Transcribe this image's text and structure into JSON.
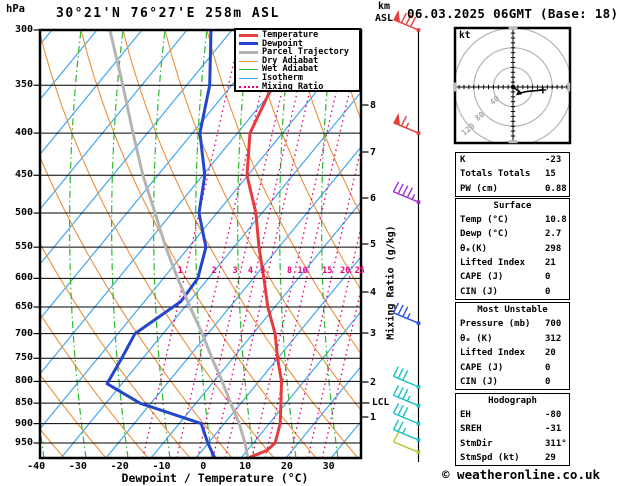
{
  "header": {
    "title": "30°21'N 76°27'E 258m ASL",
    "date": "06.03.2025 06GMT (Base: 18)"
  },
  "axes": {
    "pressure_unit": "hPa",
    "altitude_unit_line1": "km",
    "altitude_unit_line2": "ASL",
    "pressure_ticks": [
      300,
      350,
      400,
      450,
      500,
      550,
      600,
      650,
      700,
      750,
      800,
      850,
      900,
      950
    ],
    "temp_ticks": [
      -40,
      -30,
      -20,
      -10,
      0,
      10,
      20,
      30
    ],
    "xlabel": "Dewpoint / Temperature (°C)",
    "km_ticks": [
      8,
      7,
      6,
      5,
      4,
      3,
      2,
      1
    ],
    "mixing_axis_label": "Mixing Ratio (g/kg)",
    "mixing_ratio_labels": [
      1,
      2,
      3,
      4,
      5,
      8,
      10,
      15,
      20,
      25
    ],
    "lcl_label": "LCL",
    "lcl_pressure_hpa": 850
  },
  "legend": {
    "items": [
      {
        "label": "Temperature",
        "color": "#e63c3c",
        "style": "thick"
      },
      {
        "label": "Dewpoint",
        "color": "#2446cc",
        "style": "thick"
      },
      {
        "label": "Parcel Trajectory",
        "color": "#b4b4b4",
        "style": "thick"
      },
      {
        "label": "Dry Adiabat",
        "color": "#e8913d",
        "style": "thin"
      },
      {
        "label": "Wet Adiabat",
        "color": "#2db82d",
        "style": "thin"
      },
      {
        "label": "Isotherm",
        "color": "#41a6f0",
        "style": "thin"
      },
      {
        "label": "Mixing Ratio",
        "color": "#e6007e",
        "style": "dotted"
      }
    ]
  },
  "chart_data": {
    "type": "line",
    "title": "Skew-T log-P sounding",
    "x_axis": {
      "label": "Dewpoint / Temperature (°C)",
      "ticks": [
        -40,
        -30,
        -20,
        -10,
        0,
        10,
        20,
        30
      ]
    },
    "y_axis": {
      "label": "hPa",
      "scale": "log",
      "ticks": [
        300,
        350,
        400,
        450,
        500,
        550,
        600,
        650,
        700,
        750,
        800,
        850,
        900,
        950
      ],
      "range": [
        300,
        990
      ]
    },
    "series": [
      {
        "name": "Temperature",
        "color": "#e63c3c",
        "points_p_t": [
          [
            300,
            -40
          ],
          [
            350,
            -37.5
          ],
          [
            400,
            -36
          ],
          [
            450,
            -30.6
          ],
          [
            500,
            -23
          ],
          [
            550,
            -17.3
          ],
          [
            600,
            -11.6
          ],
          [
            650,
            -6.5
          ],
          [
            700,
            -0.9
          ],
          [
            750,
            3.3
          ],
          [
            800,
            7.6
          ],
          [
            850,
            10.6
          ],
          [
            900,
            13.4
          ],
          [
            950,
            15
          ],
          [
            970,
            14.1
          ],
          [
            990,
            10.8
          ]
        ]
      },
      {
        "name": "Dewpoint",
        "color": "#2446cc",
        "points_p_t": [
          [
            300,
            -60.3
          ],
          [
            350,
            -52.6
          ],
          [
            400,
            -48
          ],
          [
            450,
            -40.7
          ],
          [
            500,
            -36.6
          ],
          [
            550,
            -30
          ],
          [
            600,
            -27.4
          ],
          [
            640,
            -28.1
          ],
          [
            700,
            -34.4
          ],
          [
            750,
            -34
          ],
          [
            805,
            -33.8
          ],
          [
            850,
            -23.1
          ],
          [
            900,
            -5.5
          ],
          [
            950,
            -1.1
          ],
          [
            990,
            2.7
          ]
        ]
      },
      {
        "name": "Parcel Trajectory",
        "color": "#b4b4b4",
        "points_p_t": [
          [
            300,
            -84.5
          ],
          [
            350,
            -73.4
          ],
          [
            400,
            -64
          ],
          [
            450,
            -55.5
          ],
          [
            500,
            -47.1
          ],
          [
            550,
            -39.6
          ],
          [
            600,
            -32.2
          ],
          [
            650,
            -25.1
          ],
          [
            700,
            -18.3
          ],
          [
            750,
            -12.4
          ],
          [
            800,
            -6.6
          ],
          [
            850,
            -1.4
          ],
          [
            900,
            3.6
          ],
          [
            950,
            7.8
          ],
          [
            990,
            10.6
          ]
        ]
      }
    ],
    "mixing_ratio_lines_g_kg": [
      1,
      2,
      3,
      4,
      5,
      8,
      10,
      15,
      20,
      25
    ]
  },
  "wind_barbs": [
    {
      "pressure_hpa": 300,
      "speed_kt": 80,
      "color": "#e63c3c"
    },
    {
      "pressure_hpa": 400,
      "speed_kt": 65,
      "color": "#e63c3c"
    },
    {
      "pressure_hpa": 485,
      "speed_kt": 45,
      "color": "#9a30c8"
    },
    {
      "pressure_hpa": 680,
      "speed_kt": 35,
      "color": "#2a50e8"
    },
    {
      "pressure_hpa": 812,
      "speed_kt": 30,
      "color": "#18c0c0"
    },
    {
      "pressure_hpa": 856,
      "speed_kt": 35,
      "color": "#18c0c0"
    },
    {
      "pressure_hpa": 900,
      "speed_kt": 30,
      "color": "#18c0c0"
    },
    {
      "pressure_hpa": 942,
      "speed_kt": 25,
      "color": "#18c0c0"
    },
    {
      "pressure_hpa": 975,
      "speed_kt": 10,
      "color": "#a8cc30"
    }
  ],
  "hodograph": {
    "unit_label": "kt",
    "ring_labels": [
      40,
      80,
      120
    ],
    "trace_uv_kt": [
      [
        0,
        0
      ],
      [
        8,
        -6
      ],
      [
        16,
        -12
      ],
      [
        29,
        -9
      ],
      [
        61,
        -6
      ]
    ]
  },
  "tables": [
    {
      "rows": [
        [
          "K",
          "-23"
        ],
        [
          "Totals Totals",
          "15"
        ],
        [
          "PW (cm)",
          "0.88"
        ]
      ]
    },
    {
      "header": "Surface",
      "rows": [
        [
          "Temp (°C)",
          "10.8"
        ],
        [
          "Dewp (°C)",
          "2.7"
        ],
        [
          "θₑ(K)",
          "298"
        ],
        [
          "Lifted Index",
          "21"
        ],
        [
          "CAPE (J)",
          "0"
        ],
        [
          "CIN (J)",
          "0"
        ]
      ]
    },
    {
      "header": "Most Unstable",
      "rows": [
        [
          "Pressure (mb)",
          "700"
        ],
        [
          "θₑ (K)",
          "312"
        ],
        [
          "Lifted Index",
          "20"
        ],
        [
          "CAPE (J)",
          "0"
        ],
        [
          "CIN (J)",
          "0"
        ]
      ]
    },
    {
      "header": "Hodograph",
      "rows": [
        [
          "EH",
          "-80"
        ],
        [
          "SREH",
          "-31"
        ],
        [
          "StmDir",
          "311°"
        ],
        [
          "StmSpd (kt)",
          "29"
        ]
      ]
    }
  ],
  "footer": {
    "copyright": "© weatheronline.co.uk"
  },
  "colors": {
    "temperature": "#e63c3c",
    "dewpoint": "#2446cc",
    "parcel": "#b4b4b4",
    "dry_adiabat": "#e8913d",
    "wet_adiabat": "#2db82d",
    "isotherm": "#41a6f0",
    "mixing_ratio": "#e6007e",
    "grid": "#000000",
    "hodograph_rings": "#b5b5b5"
  }
}
